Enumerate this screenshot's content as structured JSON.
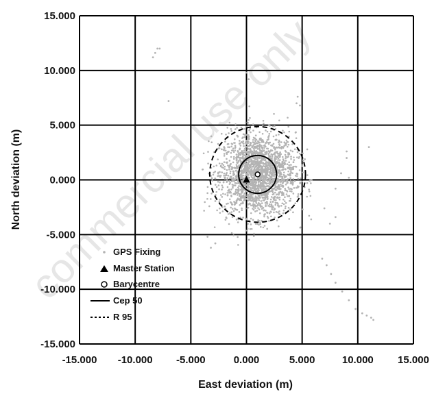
{
  "chart_data": {
    "type": "scatter",
    "title": "",
    "xlabel": "East deviation (m)",
    "ylabel": "North deviation (m)",
    "xlim": [
      -15,
      15
    ],
    "ylim": [
      -15,
      15
    ],
    "x_ticks": [
      -15,
      -10,
      -5,
      0,
      5,
      10,
      15
    ],
    "y_ticks": [
      -15,
      -10,
      -5,
      0,
      5,
      10,
      15
    ],
    "x_tick_labels": [
      "-15.000",
      "-10.000",
      "-5.000",
      "0.000",
      "5.000",
      "10.000",
      "15.000"
    ],
    "y_tick_labels": [
      "-15.000",
      "-10.000",
      "-5.000",
      "0.000",
      "5.000",
      "10.000",
      "15.000"
    ],
    "grid": true,
    "legend_position": "bottom-left",
    "watermark": "commercial use only",
    "master_station": {
      "x": 0.0,
      "y": 0.0
    },
    "barycentre": {
      "x": 1.0,
      "y": 0.5
    },
    "cep50": {
      "cx": 1.0,
      "cy": 0.5,
      "r": 1.7
    },
    "r95": {
      "cx": 1.0,
      "cy": 0.5,
      "r": 4.3
    },
    "outliers": [
      {
        "x": -8.0,
        "y": 12.0
      },
      {
        "x": -8.2,
        "y": 11.6
      },
      {
        "x": -8.4,
        "y": 11.2
      },
      {
        "x": -7.8,
        "y": 12.0
      },
      {
        "x": -7.0,
        "y": 7.2
      },
      {
        "x": 0.0,
        "y": 9.8
      },
      {
        "x": 0.2,
        "y": 9.2
      },
      {
        "x": 4.6,
        "y": 7.6
      },
      {
        "x": 4.5,
        "y": 7.0
      },
      {
        "x": 4.8,
        "y": 6.8
      },
      {
        "x": 9.0,
        "y": 2.6
      },
      {
        "x": 9.0,
        "y": 2.0
      },
      {
        "x": 11.0,
        "y": 3.0
      },
      {
        "x": 8.5,
        "y": 0.6
      },
      {
        "x": 8.0,
        "y": -0.8
      },
      {
        "x": 9.2,
        "y": 0.2
      },
      {
        "x": 7.0,
        "y": -2.6
      },
      {
        "x": 8.0,
        "y": -3.4
      },
      {
        "x": 7.5,
        "y": -4.0
      },
      {
        "x": 6.8,
        "y": -7.2
      },
      {
        "x": 7.2,
        "y": -7.8
      },
      {
        "x": 7.6,
        "y": -8.6
      },
      {
        "x": 8.0,
        "y": -9.4
      },
      {
        "x": 8.6,
        "y": -10.2
      },
      {
        "x": 9.2,
        "y": -11.0
      },
      {
        "x": 9.8,
        "y": -11.8
      },
      {
        "x": 10.4,
        "y": -12.2
      },
      {
        "x": 10.8,
        "y": -12.4
      },
      {
        "x": 11.2,
        "y": -12.6
      },
      {
        "x": 11.4,
        "y": -12.8
      },
      {
        "x": -3.5,
        "y": -5.2
      },
      {
        "x": -2.8,
        "y": -5.8
      },
      {
        "x": -3.2,
        "y": -6.2
      }
    ]
  },
  "legend": {
    "gps_fixing": "GPS Fixing",
    "master_station": "Master Station",
    "barycentre": "Barycentre",
    "cep50": "Cep 50",
    "r95": "R 95"
  },
  "colors": {
    "points": "#b3b3b3",
    "grid": "#000000",
    "marker": "#000000",
    "watermark": "#e6e6e6"
  }
}
